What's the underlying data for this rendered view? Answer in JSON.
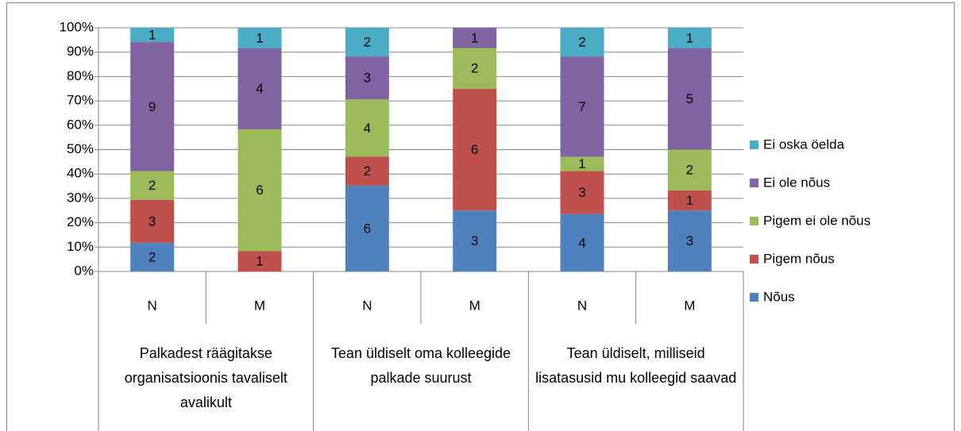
{
  "chart_data": {
    "type": "bar",
    "stack": "percent",
    "groups": [
      "Palkadest räägitakse organisatsioonis tavaliselt avalikult",
      "Tean üldiselt oma kolleegide palkade suurust",
      "Tean üldiselt, milliseid lisatasusid mu kolleegid saavad"
    ],
    "categories": [
      "N",
      "M",
      "N",
      "M",
      "N",
      "M"
    ],
    "series": [
      {
        "name": "Nõus",
        "color": "#4f81bd",
        "values": [
          2,
          null,
          6,
          3,
          4,
          3
        ]
      },
      {
        "name": "Pigem nõus",
        "color": "#c0504d",
        "values": [
          3,
          1,
          2,
          6,
          3,
          1
        ]
      },
      {
        "name": "Pigem ei ole nõus",
        "color": "#9bbb59",
        "values": [
          2,
          6,
          4,
          2,
          1,
          2
        ]
      },
      {
        "name": "Ei ole nõus",
        "color": "#8064a2",
        "values": [
          9,
          4,
          3,
          1,
          7,
          5
        ]
      },
      {
        "name": "Ei oska öelda",
        "color": "#4bacc6",
        "values": [
          1,
          1,
          2,
          null,
          2,
          1
        ]
      }
    ],
    "ylim": [
      0,
      100
    ],
    "yticks": [
      {
        "value": 0,
        "label": "0%"
      },
      {
        "value": 10,
        "label": "10%"
      },
      {
        "value": 20,
        "label": "20%"
      },
      {
        "value": 30,
        "label": "30%"
      },
      {
        "value": 40,
        "label": "40%"
      },
      {
        "value": 50,
        "label": "50%"
      },
      {
        "value": 60,
        "label": "60%"
      },
      {
        "value": 70,
        "label": "70%"
      },
      {
        "value": 80,
        "label": "80%"
      },
      {
        "value": 90,
        "label": "90%"
      },
      {
        "value": 100,
        "label": "100%"
      }
    ],
    "grid": true,
    "legend": "right"
  }
}
